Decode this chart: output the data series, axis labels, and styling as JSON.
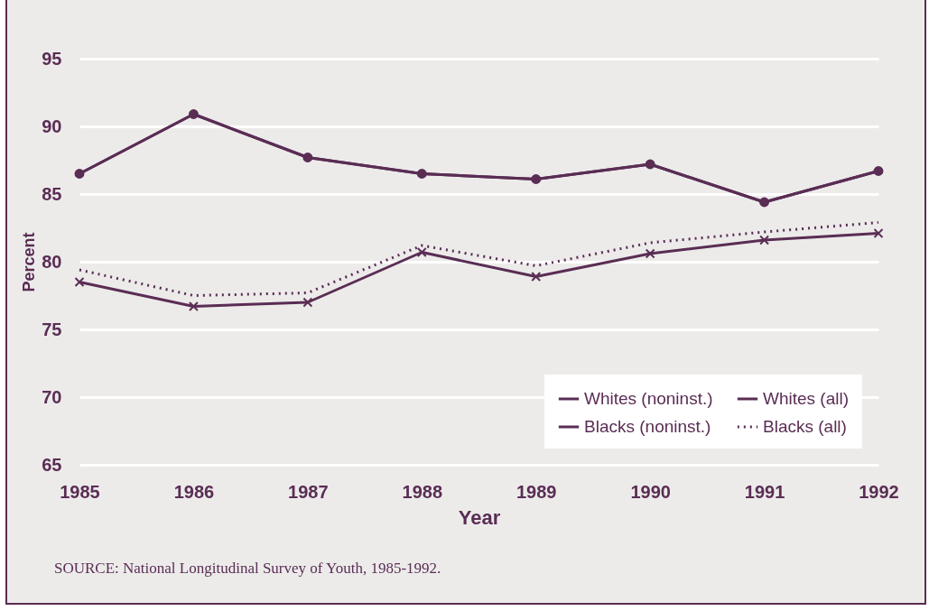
{
  "chart_data": {
    "type": "line",
    "xlabel": "Year",
    "ylabel": "Percent",
    "categories": [
      "1985",
      "1986",
      "1987",
      "1988",
      "1989",
      "1990",
      "1991",
      "1992"
    ],
    "ylim": [
      65,
      95
    ],
    "yticks": [
      65,
      70,
      75,
      80,
      85,
      90,
      95
    ],
    "grid": "y",
    "legend": "bottom right",
    "series": [
      {
        "name": "Whites (noninst.)",
        "color": "#5a2d54",
        "marker": "circle",
        "line_style": "solid",
        "values": [
          86.5,
          90.9,
          87.7,
          86.5,
          86.1,
          87.2,
          84.4,
          86.7
        ]
      },
      {
        "name": "Whites (all)",
        "color": "#5a2d54",
        "marker": "none",
        "line_style": "solid",
        "values": [
          86.5,
          90.9,
          87.7,
          86.5,
          86.1,
          87.2,
          84.4,
          86.7
        ]
      },
      {
        "name": "Blacks (noninst.)",
        "color": "#5a2d54",
        "marker": "cross",
        "line_style": "solid",
        "values": [
          78.5,
          76.7,
          77.0,
          80.7,
          78.9,
          80.6,
          81.6,
          82.1
        ]
      },
      {
        "name": "Blacks (all)",
        "color": "#5a2d54",
        "marker": "none",
        "line_style": "dotted",
        "values": [
          79.4,
          77.5,
          77.7,
          81.2,
          79.7,
          81.4,
          82.2,
          82.9
        ]
      }
    ],
    "annotations": [
      "SOURCE: National Longitudinal Survey of Youth, 1985-1992."
    ]
  }
}
